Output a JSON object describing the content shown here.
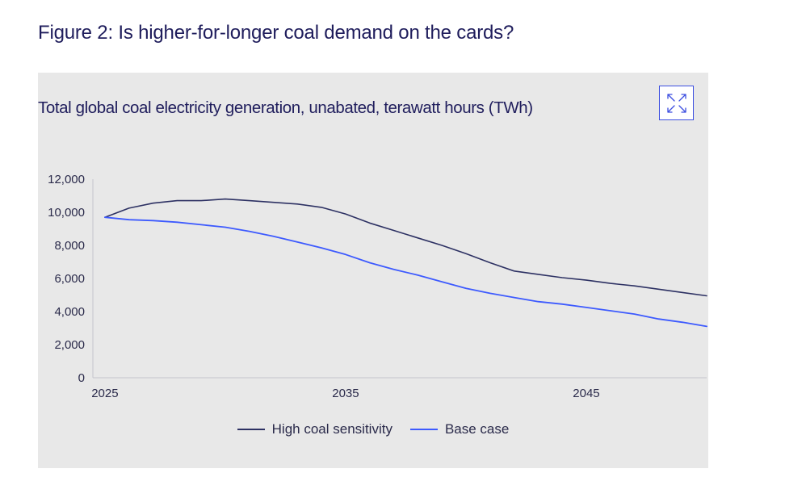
{
  "figure": {
    "title": "Figure 2: Is higher-for-longer coal demand on the cards?"
  },
  "chart_data": {
    "type": "line",
    "title": "Total global coal electricity generation, unabated, terawatt hours (TWh)",
    "xlabel": "",
    "ylabel": "",
    "xlim": [
      2024.5,
      2050
    ],
    "ylim": [
      0,
      12000
    ],
    "yticks": [
      0,
      2000,
      4000,
      6000,
      8000,
      10000,
      12000
    ],
    "ytick_labels": [
      "0",
      "2,000",
      "4,000",
      "6,000",
      "8,000",
      "10,000",
      "12,000"
    ],
    "xticks": [
      2025,
      2035,
      2045
    ],
    "xtick_labels": [
      "2025",
      "2035",
      "2045"
    ],
    "x": [
      2025,
      2026,
      2027,
      2028,
      2029,
      2030,
      2031,
      2032,
      2033,
      2034,
      2035,
      2036,
      2037,
      2038,
      2039,
      2040,
      2041,
      2042,
      2043,
      2044,
      2045,
      2046,
      2047,
      2048,
      2049,
      2050
    ],
    "series": [
      {
        "name": "High coal sensitivity",
        "color": "#2d3163",
        "values": [
          9700,
          10250,
          10550,
          10700,
          10700,
          10800,
          10700,
          10600,
          10500,
          10300,
          9900,
          9350,
          8900,
          8450,
          8000,
          7500,
          6950,
          6450,
          6250,
          6050,
          5900,
          5700,
          5550,
          5350,
          5150,
          4950
        ]
      },
      {
        "name": "Base case",
        "color": "#3d5afe",
        "values": [
          9700,
          9550,
          9500,
          9400,
          9250,
          9100,
          8850,
          8550,
          8200,
          7850,
          7450,
          6950,
          6550,
          6200,
          5800,
          5400,
          5100,
          4850,
          4600,
          4450,
          4250,
          4050,
          3850,
          3550,
          3350,
          3100
        ]
      }
    ],
    "legend_position": "bottom-center",
    "grid": false
  }
}
